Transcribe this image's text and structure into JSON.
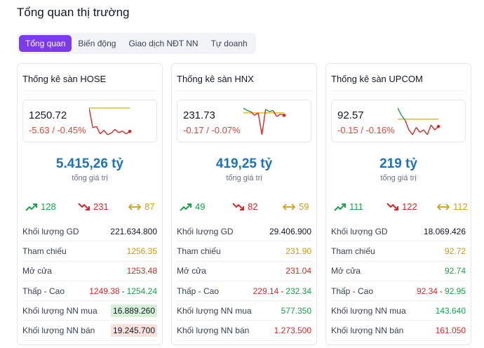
{
  "page": {
    "title": "Tổng quan thị trường"
  },
  "tabs": [
    {
      "label": "Tổng quan",
      "active": true
    },
    {
      "label": "Biến động",
      "active": false
    },
    {
      "label": "Giao dịch NĐT NN",
      "active": false
    },
    {
      "label": "Tự doanh",
      "active": false
    }
  ],
  "labels": {
    "total_label": "tổng giá trị",
    "volume": "Khối lượng GD",
    "reference": "Tham chiếu",
    "open": "Mở cửa",
    "low_high": "Thấp - Cao",
    "foreign_buy": "Khối lượng NN mua",
    "foreign_sell": "Khối lượng NN bán"
  },
  "colors": {
    "accent": "#7c3aed",
    "up": "#16a34a",
    "down": "#dc2626",
    "reference": "#ca9a0b",
    "total": "#1e73b8"
  },
  "markets": [
    {
      "title": "Thống kê sàn HOSE",
      "index_value": "1250.72",
      "change": "-5.63 / -0.45%",
      "total_value": "5.415,26 tỷ",
      "advancers": "128",
      "decliners": "231",
      "unchanged": "87",
      "volume": "221.634.800",
      "reference": "1256.35",
      "open": "1253.48",
      "low": "1249.38",
      "high": "1254.24",
      "foreign_buy": "16.889.260",
      "foreign_sell": "19.245.700",
      "sparkline": [
        1256.3,
        1251.6,
        1251.9,
        1250.1,
        1251.0,
        1249.9,
        1250.3,
        1251.2,
        1250.4,
        1250.8,
        1250.1,
        1250.7
      ],
      "reference_value": 1256.35
    },
    {
      "title": "Thống kê sàn HNX",
      "index_value": "231.73",
      "change": "-0.17 / -0.07%",
      "total_value": "419,25 tỷ",
      "advancers": "49",
      "decliners": "82",
      "unchanged": "59",
      "volume": "29.406.900",
      "reference": "231.90",
      "open": "231.04",
      "low": "229.14",
      "high": "232.34",
      "foreign_buy": "577.350",
      "foreign_sell": "1.273.500",
      "sparkline": [
        232.3,
        232.1,
        232.0,
        231.7,
        231.9,
        230.1,
        232.2,
        232.0,
        232.1,
        231.6,
        231.8,
        231.7
      ],
      "reference_value": 231.9
    },
    {
      "title": "Thống kê sàn UPCOM",
      "index_value": "92.57",
      "change": "-0.15 / -0.16%",
      "total_value": "219 tỷ",
      "advancers": "111",
      "decliners": "122",
      "unchanged": "112",
      "volume": "18.069.426",
      "reference": "92.72",
      "open": "92.74",
      "low": "92.34",
      "high": "92.95",
      "foreign_buy": "143.640",
      "foreign_sell": "161.050",
      "sparkline": [
        92.95,
        92.8,
        92.7,
        92.5,
        92.4,
        92.55,
        92.45,
        92.5,
        92.4,
        92.6,
        92.5,
        92.57
      ],
      "reference_value": 92.72
    }
  ]
}
